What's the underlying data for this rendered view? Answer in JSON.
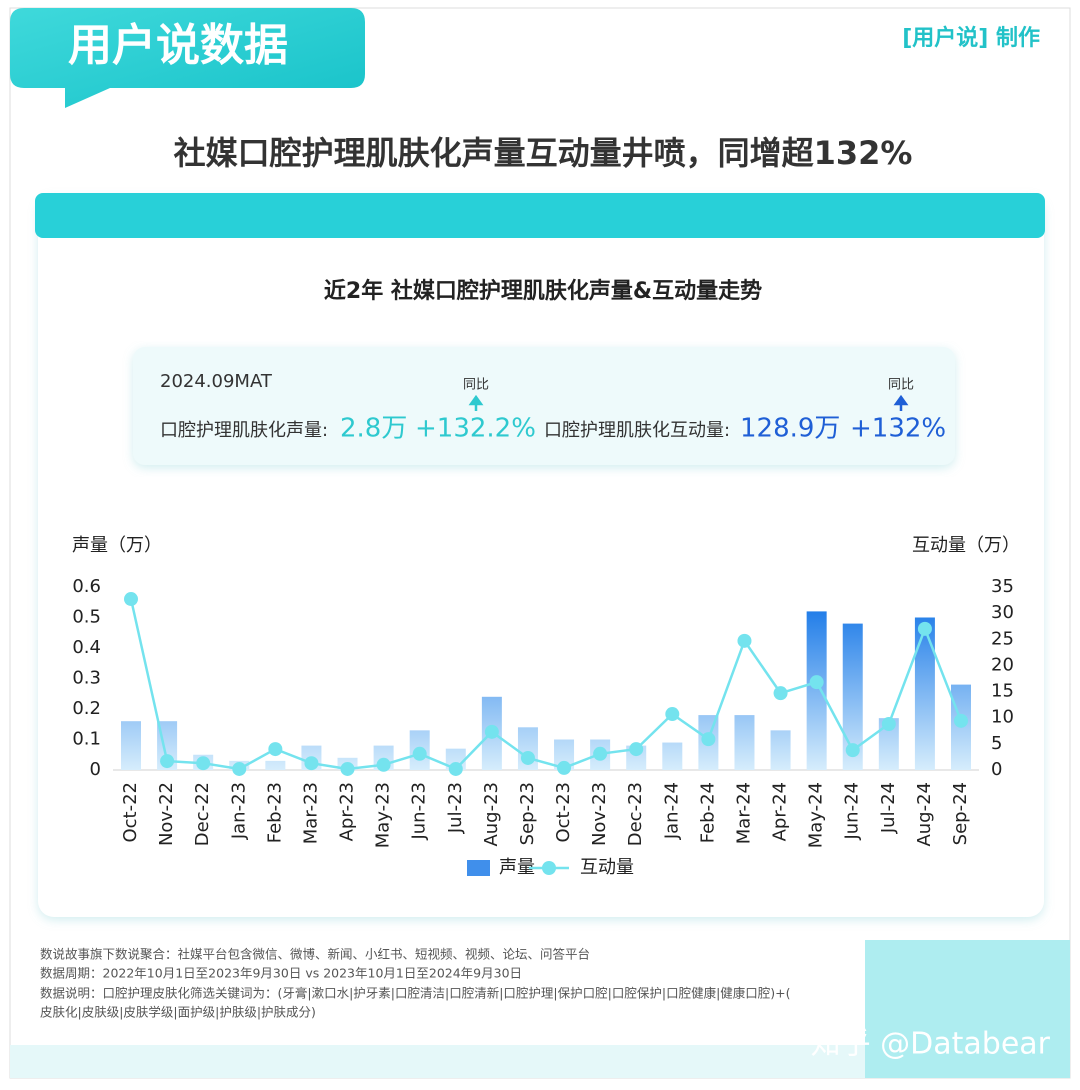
{
  "header": {
    "badge": "用户说数据",
    "credit": "[用户说] 制作",
    "title": "社媒口腔护理肌肤化声量互动量井喷，同增超132%"
  },
  "summary": {
    "period": "2024.09MAT",
    "items": [
      {
        "label": "口腔护理肌肤化声量:",
        "value": "2.8万",
        "yoy_label": "同比",
        "yoy": "+132.2%"
      },
      {
        "label": "口腔护理肌肤化互动量:",
        "value": "128.9万",
        "yoy_label": "同比",
        "yoy": "+132%"
      }
    ]
  },
  "chart_data": {
    "type": "combo",
    "title": "近2年 社媒口腔护理肌肤化声量&互动量走势",
    "y_label": "声量（万）",
    "y2_label": "互动量（万）",
    "categories": [
      "Oct-22",
      "Nov-22",
      "Dec-22",
      "Jan-23",
      "Feb-23",
      "Mar-23",
      "Apr-23",
      "May-23",
      "Jun-23",
      "Jul-23",
      "Aug-23",
      "Sep-23",
      "Oct-23",
      "Nov-23",
      "Dec-23",
      "Jan-24",
      "Feb-24",
      "Mar-24",
      "Apr-24",
      "May-24",
      "Jun-24",
      "Jul-24",
      "Aug-24",
      "Sep-24"
    ],
    "series": [
      {
        "name": "声量",
        "type": "bar",
        "color": "#1e7be8",
        "values": [
          0.16,
          0.16,
          0.05,
          0.03,
          0.03,
          0.08,
          0.04,
          0.08,
          0.13,
          0.07,
          0.24,
          0.14,
          0.1,
          0.1,
          0.08,
          0.09,
          0.18,
          0.18,
          0.13,
          0.52,
          0.48,
          0.17,
          0.5,
          0.28
        ]
      },
      {
        "name": "互动量",
        "type": "line",
        "axis": "y2",
        "color": "#74e3ee",
        "values": [
          32.7,
          1.7,
          1.3,
          0.2,
          4.0,
          1.3,
          0.2,
          1.0,
          3.1,
          0.2,
          7.3,
          2.3,
          0.4,
          3.1,
          4.0,
          10.7,
          5.9,
          24.7,
          14.7,
          16.8,
          3.8,
          8.8,
          27.0,
          9.4
        ]
      }
    ],
    "ylim": [
      0,
      0.6
    ],
    "yticks": [
      0,
      0.1,
      0.2,
      0.3,
      0.4,
      0.5,
      0.6
    ],
    "y2lim": [
      0,
      35
    ],
    "y2ticks": [
      0,
      5,
      10,
      15,
      20,
      25,
      30,
      35
    ],
    "grid": false,
    "legend": "bottom"
  },
  "notes": [
    "数说故事旗下数说聚合：社媒平台包含微信、微博、新闻、小红书、短视频、视频、论坛、问答平台",
    "数据周期：2022年10月1日至2023年9月30日 vs 2023年10月1日至2024年9月30日",
    "数据说明：口腔护理皮肤化筛选关键词为：(牙膏|漱口水|护牙素|口腔清洁|口腔清新|口腔护理|保护口腔|口腔保护|口腔健康|健康口腔)+(",
    "皮肤化|皮肤级|皮肤学级|面护级|护肤级|护肤成分)"
  ],
  "watermark": "知乎 @Databear"
}
